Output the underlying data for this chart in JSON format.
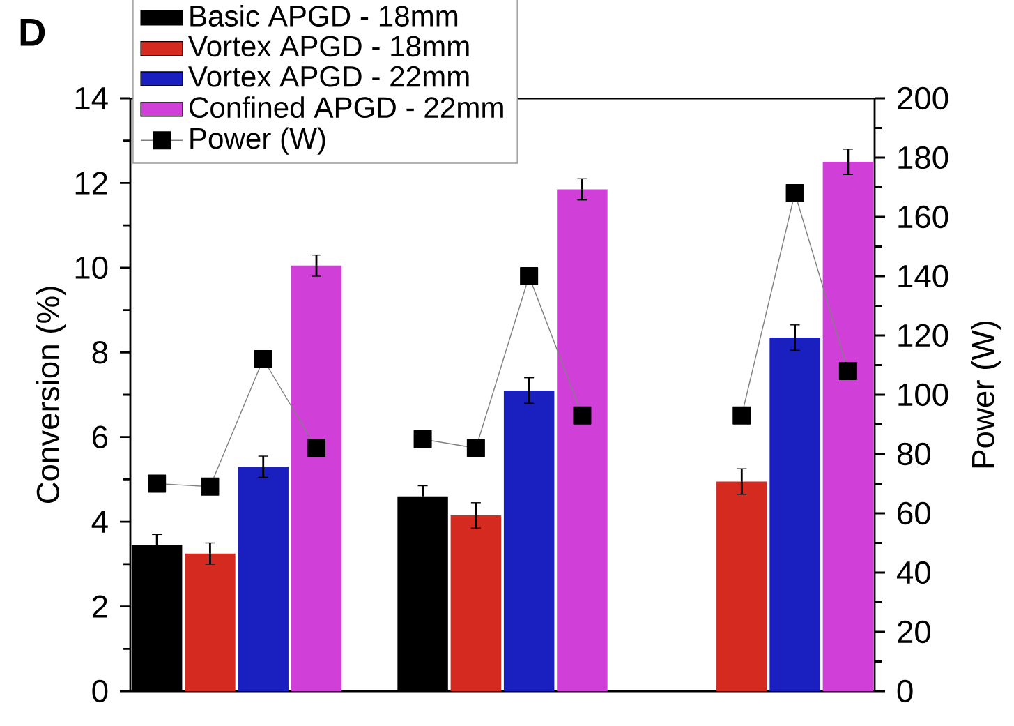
{
  "chart_data": {
    "type": "bar",
    "annotations": [
      "D"
    ],
    "ylabel": "Conversion (%)",
    "y2label": "Power (W)",
    "categories": [
      null,
      null,
      null,
      null,
      null,
      null,
      null,
      null,
      null,
      null,
      null,
      null,
      null,
      null
    ],
    "series": [
      {
        "name": "Basic APGD - 18mm",
        "color": "#000000",
        "values": [
          3.45,
          null,
          null,
          null,
          null,
          4.6,
          null,
          null,
          null,
          null,
          null,
          null,
          null,
          null
        ],
        "errors": [
          0.25,
          null,
          null,
          null,
          null,
          0.25,
          null,
          null,
          null,
          null,
          null,
          null,
          null,
          null
        ]
      },
      {
        "name": "Vortex APGD - 18mm",
        "color": "#d42a20",
        "values": [
          null,
          3.25,
          null,
          null,
          null,
          null,
          4.15,
          null,
          null,
          null,
          null,
          4.95,
          null,
          null
        ],
        "errors": [
          null,
          0.25,
          null,
          null,
          null,
          null,
          0.3,
          null,
          null,
          null,
          null,
          0.3,
          null,
          null
        ]
      },
      {
        "name": "Vortex APGD - 22mm",
        "color": "#1a1fc0",
        "values": [
          null,
          null,
          5.3,
          null,
          null,
          null,
          null,
          7.1,
          null,
          null,
          null,
          null,
          8.35,
          null
        ],
        "errors": [
          null,
          null,
          0.25,
          null,
          null,
          null,
          null,
          0.3,
          null,
          null,
          null,
          null,
          0.3,
          null
        ]
      },
      {
        "name": "Confined APGD - 22mm",
        "color": "#d040d8",
        "values": [
          null,
          null,
          null,
          10.05,
          null,
          null,
          null,
          null,
          11.85,
          null,
          null,
          null,
          null,
          12.5
        ],
        "errors": [
          null,
          null,
          null,
          0.25,
          null,
          null,
          null,
          null,
          0.25,
          null,
          null,
          null,
          null,
          0.3
        ]
      },
      {
        "name": "Power (W)",
        "type": "line",
        "axis": "y2",
        "color": "#808080",
        "marker": "square",
        "values": [
          70,
          69,
          112,
          82,
          null,
          85,
          82,
          140,
          93,
          null,
          null,
          93,
          168,
          108
        ]
      }
    ],
    "ylim": [
      0,
      14
    ],
    "yticks": [
      0,
      2,
      4,
      6,
      8,
      10,
      12,
      14
    ],
    "y2lim": [
      0,
      200
    ],
    "y2ticks": [
      0,
      20,
      40,
      60,
      80,
      100,
      120,
      140,
      160,
      180,
      200
    ],
    "legend": "top left"
  }
}
